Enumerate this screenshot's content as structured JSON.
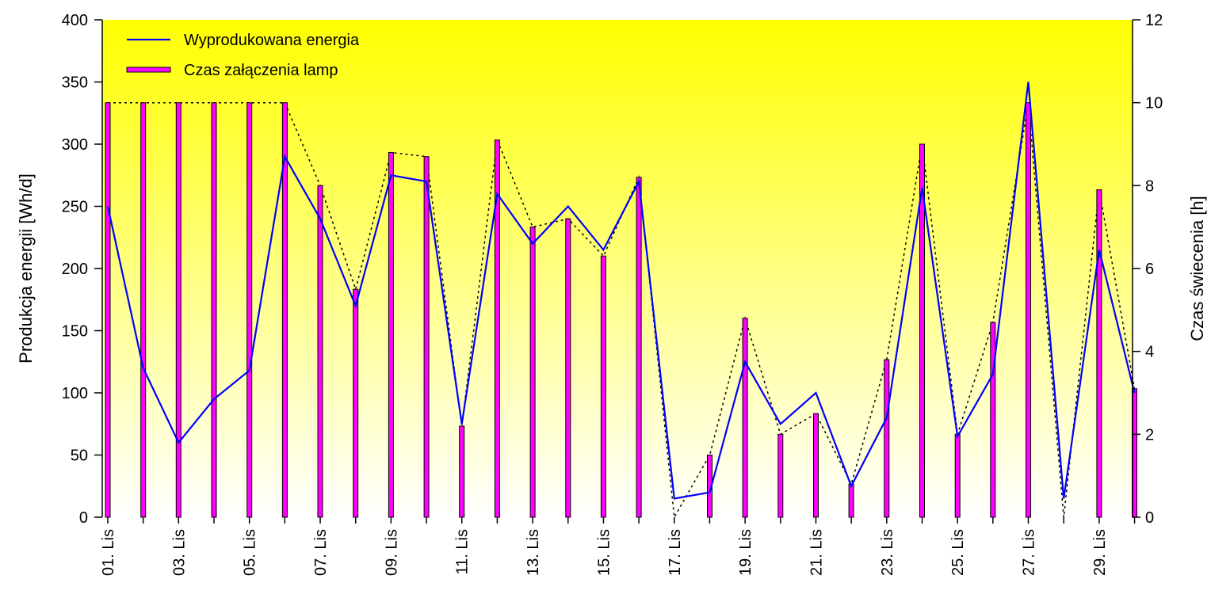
{
  "chart_data": {
    "type": "bar",
    "ylabel": "Produkcja energii [Wh/d]",
    "y2label": "Czas świecenia [h]",
    "ylim": [
      0,
      400
    ],
    "y2lim": [
      0,
      12
    ],
    "yticks": [
      "0",
      "50",
      "100",
      "150",
      "200",
      "250",
      "300",
      "350",
      "400"
    ],
    "y2ticks": [
      "0",
      "2",
      "4",
      "6",
      "8",
      "10",
      "12"
    ],
    "xtick_labels": [
      "01. Lis",
      "03. Lis",
      "05. Lis",
      "07. Lis",
      "09. Lis",
      "11. Lis",
      "13. Lis",
      "15. Lis",
      "17. Lis",
      "19. Lis",
      "21. Lis",
      "23. Lis",
      "25. Lis",
      "27. Lis",
      "29. Lis"
    ],
    "x": [
      1,
      2,
      3,
      4,
      5,
      6,
      7,
      8,
      9,
      10,
      11,
      12,
      13,
      14,
      15,
      16,
      17,
      18,
      19,
      20,
      21,
      22,
      23,
      24,
      25,
      26,
      27,
      28,
      29,
      30
    ],
    "legend_position": "top-left",
    "grid": false,
    "background_gradient": [
      "#ffff00",
      "#ffffff"
    ],
    "series": [
      {
        "name": "Wyprodukowana energia",
        "type": "line",
        "axis": "left",
        "color": "#0000ff",
        "values": [
          250,
          120,
          60,
          95,
          118,
          290,
          240,
          170,
          275,
          270,
          75,
          260,
          220,
          250,
          215,
          270,
          15,
          20,
          125,
          75,
          100,
          25,
          80,
          265,
          65,
          115,
          350,
          15,
          215,
          100
        ]
      },
      {
        "name": "Czas załączenia lamp",
        "type": "bar",
        "axis": "right",
        "color": "#ff00ff",
        "values": [
          10,
          10,
          10,
          10,
          10,
          10,
          8,
          5.5,
          8.8,
          8.7,
          2.2,
          9.1,
          7,
          7.2,
          6.3,
          8.2,
          0,
          1.5,
          4.8,
          2,
          2.5,
          0.8,
          3.8,
          9,
          2,
          4.7,
          10,
          0,
          7.9,
          3.1
        ]
      }
    ]
  }
}
